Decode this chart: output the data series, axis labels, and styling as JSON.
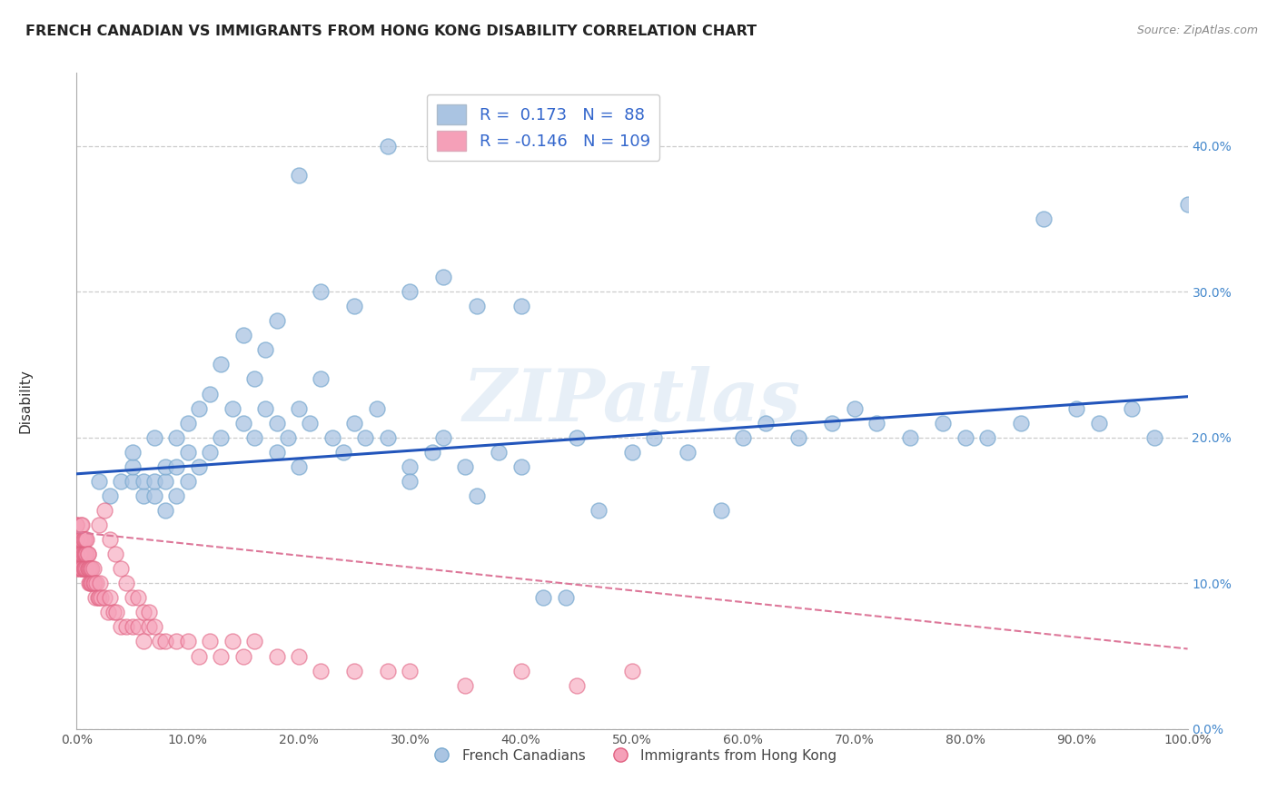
{
  "title": "FRENCH CANADIAN VS IMMIGRANTS FROM HONG KONG DISABILITY CORRELATION CHART",
  "source": "Source: ZipAtlas.com",
  "ylabel": "Disability",
  "xlim": [
    0.0,
    1.0
  ],
  "ylim": [
    0.0,
    0.45
  ],
  "xticks": [
    0.0,
    0.1,
    0.2,
    0.3,
    0.4,
    0.5,
    0.6,
    0.7,
    0.8,
    0.9,
    1.0
  ],
  "yticks": [
    0.0,
    0.1,
    0.2,
    0.3,
    0.4
  ],
  "xtick_labels": [
    "0.0%",
    "10.0%",
    "20.0%",
    "30.0%",
    "40.0%",
    "50.0%",
    "60.0%",
    "70.0%",
    "80.0%",
    "90.0%",
    "100.0%"
  ],
  "ytick_labels": [
    "0.0%",
    "10.0%",
    "20.0%",
    "30.0%",
    "40.0%"
  ],
  "blue_color": "#aac4e2",
  "blue_edge_color": "#7aaad0",
  "pink_color": "#f5a0b8",
  "pink_edge_color": "#e06080",
  "blue_line_color": "#2255bb",
  "pink_line_color": "#dd7799",
  "legend_R_blue": "0.173",
  "legend_N_blue": "88",
  "legend_R_pink": "-0.146",
  "legend_N_pink": "109",
  "watermark": "ZIPatlas",
  "blue_line_x0": 0.0,
  "blue_line_x1": 1.0,
  "blue_line_y0": 0.175,
  "blue_line_y1": 0.228,
  "pink_line_x0": 0.0,
  "pink_line_x1": 1.0,
  "pink_line_y0": 0.135,
  "pink_line_y1": 0.055,
  "blue_scatter_x": [
    0.02,
    0.03,
    0.04,
    0.05,
    0.05,
    0.05,
    0.06,
    0.06,
    0.07,
    0.07,
    0.07,
    0.08,
    0.08,
    0.08,
    0.09,
    0.09,
    0.09,
    0.1,
    0.1,
    0.1,
    0.11,
    0.11,
    0.12,
    0.12,
    0.13,
    0.13,
    0.14,
    0.15,
    0.15,
    0.16,
    0.16,
    0.17,
    0.17,
    0.18,
    0.18,
    0.19,
    0.2,
    0.2,
    0.21,
    0.22,
    0.23,
    0.24,
    0.25,
    0.26,
    0.27,
    0.28,
    0.3,
    0.3,
    0.32,
    0.33,
    0.35,
    0.36,
    0.38,
    0.4,
    0.42,
    0.44,
    0.45,
    0.47,
    0.5,
    0.52,
    0.55,
    0.58,
    0.6,
    0.62,
    0.65,
    0.68,
    0.7,
    0.72,
    0.75,
    0.78,
    0.8,
    0.82,
    0.85,
    0.87,
    0.9,
    0.92,
    0.95,
    0.97,
    1.0,
    0.22,
    0.25,
    0.18,
    0.28,
    0.3,
    0.2,
    0.33,
    0.36,
    0.4
  ],
  "blue_scatter_y": [
    0.17,
    0.16,
    0.17,
    0.17,
    0.18,
    0.19,
    0.16,
    0.17,
    0.16,
    0.17,
    0.2,
    0.15,
    0.17,
    0.18,
    0.16,
    0.18,
    0.2,
    0.17,
    0.19,
    0.21,
    0.18,
    0.22,
    0.19,
    0.23,
    0.2,
    0.25,
    0.22,
    0.21,
    0.27,
    0.2,
    0.24,
    0.22,
    0.26,
    0.21,
    0.19,
    0.2,
    0.22,
    0.18,
    0.21,
    0.24,
    0.2,
    0.19,
    0.21,
    0.2,
    0.22,
    0.2,
    0.18,
    0.17,
    0.19,
    0.2,
    0.18,
    0.16,
    0.19,
    0.18,
    0.09,
    0.09,
    0.2,
    0.15,
    0.19,
    0.2,
    0.19,
    0.15,
    0.2,
    0.21,
    0.2,
    0.21,
    0.22,
    0.21,
    0.2,
    0.21,
    0.2,
    0.2,
    0.21,
    0.35,
    0.22,
    0.21,
    0.22,
    0.2,
    0.36,
    0.3,
    0.29,
    0.28,
    0.4,
    0.3,
    0.38,
    0.31,
    0.29,
    0.29
  ],
  "pink_scatter_x": [
    0.0,
    0.0,
    0.0,
    0.0,
    0.0,
    0.0,
    0.0,
    0.0,
    0.0,
    0.0,
    0.003,
    0.003,
    0.003,
    0.003,
    0.003,
    0.003,
    0.004,
    0.004,
    0.004,
    0.004,
    0.004,
    0.004,
    0.004,
    0.005,
    0.005,
    0.005,
    0.005,
    0.005,
    0.005,
    0.005,
    0.006,
    0.006,
    0.006,
    0.006,
    0.006,
    0.007,
    0.007,
    0.007,
    0.007,
    0.008,
    0.008,
    0.008,
    0.008,
    0.009,
    0.009,
    0.009,
    0.01,
    0.01,
    0.01,
    0.01,
    0.011,
    0.011,
    0.012,
    0.012,
    0.013,
    0.013,
    0.014,
    0.014,
    0.015,
    0.015,
    0.016,
    0.017,
    0.018,
    0.019,
    0.02,
    0.021,
    0.022,
    0.025,
    0.028,
    0.03,
    0.033,
    0.036,
    0.04,
    0.045,
    0.05,
    0.055,
    0.06,
    0.065,
    0.07,
    0.075,
    0.08,
    0.09,
    0.1,
    0.11,
    0.12,
    0.13,
    0.14,
    0.15,
    0.16,
    0.18,
    0.2,
    0.22,
    0.25,
    0.28,
    0.3,
    0.35,
    0.4,
    0.45,
    0.5,
    0.02,
    0.025,
    0.03,
    0.035,
    0.04,
    0.045,
    0.05,
    0.055,
    0.06,
    0.065
  ],
  "pink_scatter_y": [
    0.12,
    0.13,
    0.11,
    0.14,
    0.12,
    0.13,
    0.11,
    0.12,
    0.14,
    0.13,
    0.12,
    0.13,
    0.12,
    0.11,
    0.13,
    0.12,
    0.12,
    0.13,
    0.11,
    0.12,
    0.14,
    0.12,
    0.13,
    0.12,
    0.11,
    0.13,
    0.12,
    0.12,
    0.11,
    0.14,
    0.12,
    0.13,
    0.11,
    0.12,
    0.13,
    0.11,
    0.13,
    0.12,
    0.11,
    0.12,
    0.11,
    0.13,
    0.12,
    0.11,
    0.12,
    0.13,
    0.12,
    0.11,
    0.12,
    0.11,
    0.1,
    0.11,
    0.1,
    0.11,
    0.1,
    0.11,
    0.1,
    0.11,
    0.1,
    0.11,
    0.1,
    0.09,
    0.1,
    0.09,
    0.09,
    0.1,
    0.09,
    0.09,
    0.08,
    0.09,
    0.08,
    0.08,
    0.07,
    0.07,
    0.07,
    0.07,
    0.06,
    0.07,
    0.07,
    0.06,
    0.06,
    0.06,
    0.06,
    0.05,
    0.06,
    0.05,
    0.06,
    0.05,
    0.06,
    0.05,
    0.05,
    0.04,
    0.04,
    0.04,
    0.04,
    0.03,
    0.04,
    0.03,
    0.04,
    0.14,
    0.15,
    0.13,
    0.12,
    0.11,
    0.1,
    0.09,
    0.09,
    0.08,
    0.08
  ]
}
